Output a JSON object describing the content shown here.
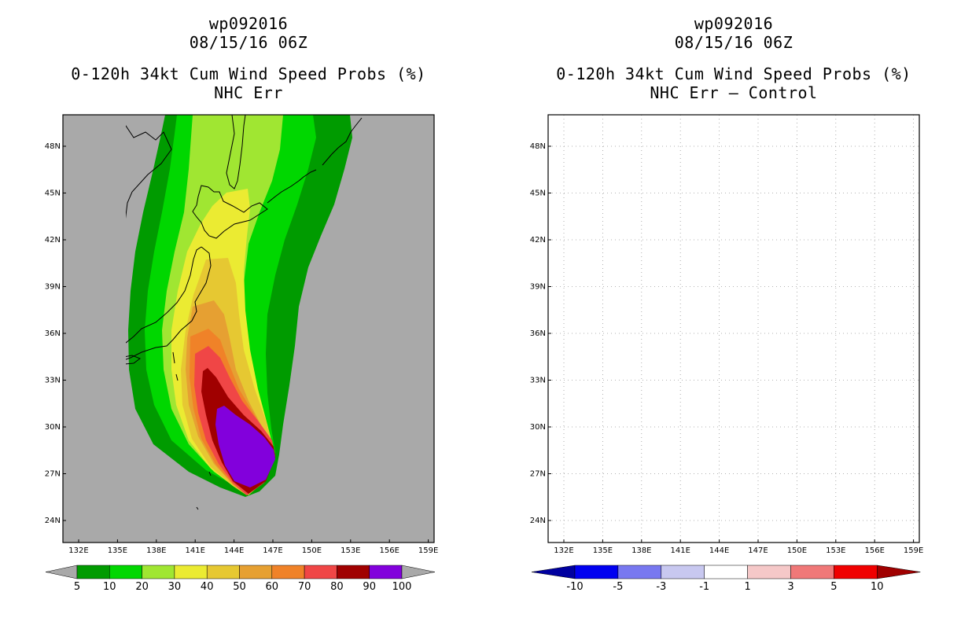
{
  "left": {
    "storm": "wp092016",
    "datetime": "08/15/16 06Z",
    "title": "0-120h 34kt Cum Wind Speed Probs (%)",
    "subtitle": "NHC Err",
    "colorbar": {
      "labels": [
        "5",
        "10",
        "20",
        "30",
        "40",
        "50",
        "60",
        "70",
        "80",
        "90",
        "100"
      ],
      "colors": [
        "#a9a9a9",
        "#009b00",
        "#00d700",
        "#a0e632",
        "#ebeb32",
        "#e6c832",
        "#e6a032",
        "#f08228",
        "#f04646",
        "#a00000",
        "#8200dc"
      ],
      "over": "#a9a9a9"
    }
  },
  "right": {
    "storm": "wp092016",
    "datetime": "08/15/16 06Z",
    "title": "0-120h 34kt Cum Wind Speed Probs (%)",
    "subtitle": "NHC Err – Control",
    "colorbar": {
      "labels": [
        "-10",
        "-5",
        "-3",
        "-1",
        "1",
        "3",
        "5",
        "10"
      ],
      "colors": [
        "#0000a0",
        "#0000f0",
        "#7878f0",
        "#c8c8f0",
        "#ffffff",
        "#f5c8c8",
        "#f07878",
        "#f00000",
        "#a00000"
      ]
    }
  },
  "axes": {
    "lon_labels": [
      "132E",
      "135E",
      "138E",
      "141E",
      "144E",
      "147E",
      "150E",
      "153E",
      "156E",
      "159E"
    ],
    "lat_labels": [
      "48N",
      "45N",
      "42N",
      "39N",
      "36N",
      "33N",
      "30N",
      "27N",
      "24N"
    ]
  }
}
